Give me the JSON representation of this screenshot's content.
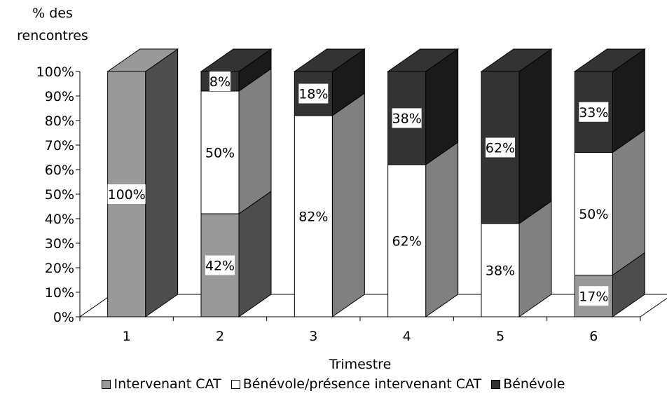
{
  "chart_data": {
    "type": "bar",
    "stacked": true,
    "three_d": true,
    "ylabel": [
      "% des",
      "rencontres"
    ],
    "xlabel": "Trimestre",
    "categories": [
      "1",
      "2",
      "3",
      "4",
      "5",
      "6"
    ],
    "yticks": [
      "0%",
      "10%",
      "20%",
      "30%",
      "40%",
      "50%",
      "60%",
      "70%",
      "80%",
      "90%",
      "100%"
    ],
    "ylim": [
      0,
      100
    ],
    "legend_position": "bottom",
    "series": [
      {
        "name": "Intervenant CAT",
        "color": "#999999",
        "side_color": "#4d4d4d",
        "values": [
          100,
          42,
          0,
          0,
          0,
          17
        ],
        "labels": [
          "100%",
          "42%",
          "",
          "",
          "",
          "17%"
        ]
      },
      {
        "name": "Bénévole/présence intervenant CAT",
        "color": "#ffffff",
        "side_color": "#808080",
        "values": [
          0,
          50,
          82,
          62,
          38,
          50
        ],
        "labels": [
          "",
          "50%",
          "82%",
          "62%",
          "38%",
          "50%"
        ]
      },
      {
        "name": "Bénévole",
        "color": "#333333",
        "side_color": "#1a1a1a",
        "values": [
          0,
          8,
          18,
          38,
          62,
          33
        ],
        "labels": [
          "",
          "8%",
          "18%",
          "38%",
          "62%",
          "33%"
        ]
      }
    ]
  }
}
